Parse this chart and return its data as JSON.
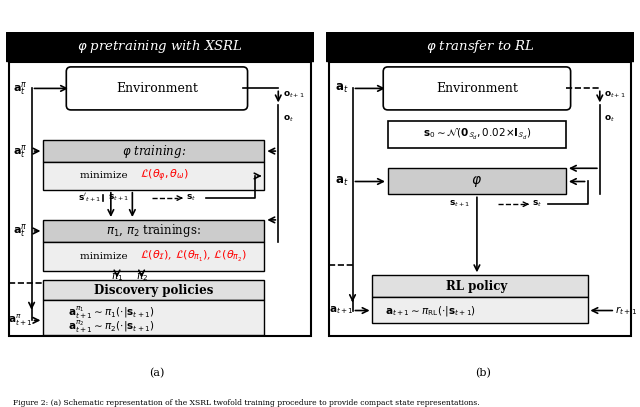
{
  "fig_width": 6.4,
  "fig_height": 4.07,
  "background": "#ffffff",
  "left_title": "φ pretraining with XSRL",
  "right_title": "φ transfer to RL",
  "caption_a": "(a)",
  "caption_b": "(b)",
  "caption_text": "Figure 2: (a) Schematic representation of the XSRL twofold training procedure to provide compact state representations."
}
